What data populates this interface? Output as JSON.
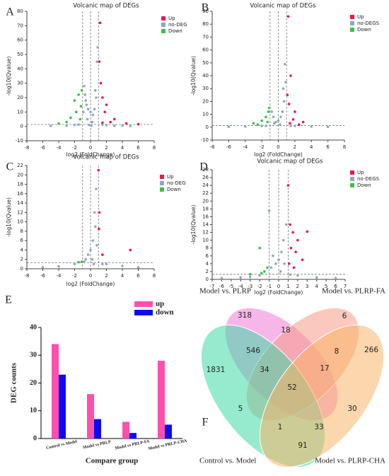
{
  "chart_data": [
    {
      "type": "scatter",
      "panel": "A",
      "title": "Volcanic map of DEGs",
      "x_label": "log2 (FoldChange)",
      "y_label": "-log10(Qvalue)",
      "xlim": [
        -8,
        8
      ],
      "xticks": [
        -8,
        -6,
        -4,
        -2,
        0,
        2,
        4,
        6,
        8
      ],
      "ylim": [
        -10,
        80
      ],
      "yticks": [
        -10,
        0,
        10,
        20,
        30,
        40,
        50,
        60,
        70,
        80
      ],
      "vlines": [
        -1,
        0,
        1
      ],
      "hline": 1.3,
      "series": [
        {
          "name": "Up",
          "color": "#e8174f",
          "x": [
            1.2,
            1.1,
            1.3,
            1.5,
            2,
            1.8,
            3,
            2.5,
            4.5,
            1.5,
            6
          ],
          "values": [
            72,
            45,
            30,
            20,
            15,
            10,
            5,
            3,
            2,
            2.5,
            1.5
          ]
        },
        {
          "name": "no-DEG",
          "color": "#8fa8bf",
          "x": [
            -0.8,
            -0.7,
            -0.6,
            -0.5,
            -0.3,
            0,
            0.3,
            0.5,
            0.7,
            0.8,
            0.9,
            0.6,
            -0.9,
            -0.4,
            0.2,
            -2,
            -3,
            2,
            3,
            -5,
            5,
            -1.5,
            1.5,
            0.1,
            -0.2,
            4
          ],
          "values": [
            28,
            22,
            18,
            15,
            12,
            10,
            8,
            12,
            20,
            45,
            55,
            25,
            10,
            5,
            3,
            1,
            0.5,
            0.8,
            0.4,
            0.3,
            0.2,
            1.2,
            1.1,
            0.5,
            1,
            0.6
          ]
        },
        {
          "name": "Down",
          "color": "#3cbf4a",
          "x": [
            -1.5,
            -2,
            -1.2,
            -1.8,
            -2.5,
            -1.1,
            -3,
            -4,
            -1.3
          ],
          "values": [
            22,
            18,
            14,
            10,
            6,
            25,
            3,
            2,
            5
          ]
        }
      ]
    },
    {
      "type": "scatter",
      "panel": "B",
      "title": "Volcanic map of DEGs",
      "x_label": "log2 (FoldChange)",
      "y_label": "-log10(Qvalue)",
      "xlim": [
        -8,
        8
      ],
      "xticks": [
        -8,
        -6,
        -4,
        -2,
        0,
        2,
        4,
        6,
        8
      ],
      "ylim": [
        -10,
        90
      ],
      "yticks": [
        -10,
        0,
        10,
        20,
        30,
        40,
        50,
        60,
        70,
        80,
        90
      ],
      "vlines": [
        -1,
        0,
        1
      ],
      "hline": 1.3,
      "series": [
        {
          "name": "Up",
          "color": "#e8174f",
          "x": [
            1.2,
            1.5,
            1.1,
            1.3,
            2,
            1.8,
            3,
            1.4,
            2.5
          ],
          "values": [
            86,
            40,
            25,
            18,
            12,
            6,
            4,
            3,
            2
          ]
        },
        {
          "name": "no-DEGS",
          "color": "#8fa8bf",
          "x": [
            0.8,
            0.6,
            0.7,
            0.5,
            0.3,
            0,
            -0.3,
            -0.6,
            -0.8,
            -0.5,
            0.9,
            -2,
            2,
            -4,
            4,
            -6,
            6,
            0.2,
            -1.5,
            1.5
          ],
          "values": [
            49,
            30,
            20,
            12,
            8,
            5,
            4,
            8,
            12,
            3,
            35,
            1,
            1,
            0.5,
            0.5,
            0.3,
            0.3,
            2,
            1,
            1
          ]
        },
        {
          "name": "Down",
          "color": "#3cbf4a",
          "x": [
            -1.2,
            -1.5,
            -2,
            -1.1,
            -3,
            -1.3,
            -2.5
          ],
          "values": [
            12,
            8,
            5,
            15,
            3,
            4,
            2
          ]
        }
      ]
    },
    {
      "type": "scatter",
      "panel": "C",
      "title": "Volcanic map of DEGs",
      "x_label": "log2 (FoldChange)",
      "y_label": "-log10(Qvalue)",
      "xlim": [
        -8,
        8
      ],
      "xticks": [
        -8,
        -6,
        -4,
        -2,
        0,
        2,
        4,
        6,
        8
      ],
      "ylim": [
        0,
        22
      ],
      "yticks": [
        0,
        2,
        4,
        6,
        8,
        10,
        12,
        14,
        16,
        18,
        20,
        22
      ],
      "vlines": [
        -1,
        0,
        1
      ],
      "hline": 1.3,
      "series": [
        {
          "name": "Up",
          "color": "#e8174f",
          "x": [
            1,
            1.1,
            1.05,
            5,
            1.5
          ],
          "values": [
            21,
            12,
            8.5,
            4,
            3
          ]
        },
        {
          "name": "no-DEG",
          "color": "#8fa8bf",
          "x": [
            0.7,
            0.5,
            0.6,
            0.3,
            0,
            -0.3,
            -0.6,
            0.8,
            0.2,
            -2,
            2,
            -4,
            4,
            -6,
            6,
            -0.8,
            1.5,
            0.4
          ],
          "values": [
            17,
            12,
            9,
            6,
            4,
            3,
            2,
            5,
            2,
            1,
            1,
            0.5,
            0.6,
            0.3,
            0.3,
            1.5,
            1,
            1
          ]
        },
        {
          "name": "Down",
          "color": "#3cbf4a",
          "x": [
            -1.1,
            -1.5
          ],
          "values": [
            1.5,
            1.4
          ]
        }
      ]
    },
    {
      "type": "scatter",
      "panel": "D",
      "title": "Volcanic map of DEGs",
      "x_label": "log2 (FoldChange)",
      "y_label": "-log10(Qvalue)",
      "xlim": [
        -7,
        7
      ],
      "xticks": [
        -7,
        -6,
        -5,
        -4,
        -3,
        -2,
        -1,
        0,
        1,
        2,
        3,
        4,
        5,
        6,
        7
      ],
      "ylim": [
        0,
        28
      ],
      "yticks": [
        0,
        2,
        4,
        6,
        8,
        10,
        12,
        14,
        16,
        18,
        20,
        22,
        24,
        26,
        28
      ],
      "vlines": [
        -1,
        0,
        1
      ],
      "hline": 1.3,
      "series": [
        {
          "name": "Up",
          "color": "#e8174f",
          "x": [
            1,
            1.2,
            1.5,
            2,
            1.3,
            1.8,
            2.5,
            1.1,
            3,
            1.6
          ],
          "values": [
            24,
            14,
            12,
            10,
            8,
            7,
            5,
            4,
            12.2,
            3
          ]
        },
        {
          "name": "no-DEGS",
          "color": "#8fa8bf",
          "x": [
            -1,
            0.8,
            0.5,
            0.3,
            0,
            -0.3,
            -0.6,
            -0.8,
            0.6,
            -2,
            2,
            -4,
            4,
            -6,
            6,
            -3,
            0.2,
            1.2
          ],
          "values": [
            17.5,
            14,
            10,
            7,
            5,
            4,
            6,
            3,
            4,
            1,
            1,
            0.5,
            0.5,
            0.3,
            0.3,
            0.6,
            2,
            1.2
          ]
        },
        {
          "name": "Down",
          "color": "#3cbf4a",
          "x": [
            -2,
            -1.2,
            -1.5,
            -1.8,
            -3
          ],
          "values": [
            8,
            3,
            2,
            1.6,
            1.3
          ]
        }
      ]
    },
    {
      "type": "bar",
      "panel": "E",
      "x_label": "Compare group",
      "y_label": "DEG counts",
      "categories": [
        "Control vs Model",
        "Model vs PRLP",
        "Model vs PRLP-FA",
        "Model vs PRLP-CHA"
      ],
      "ylim": [
        0,
        40
      ],
      "yticks": [
        0,
        10,
        20,
        30,
        40
      ],
      "series": [
        {
          "name": "up",
          "color": "#ff4fae",
          "values": [
            34,
            16,
            6,
            28
          ]
        },
        {
          "name": "down",
          "color": "#0a0af5",
          "values": [
            23,
            7,
            2,
            5
          ]
        }
      ]
    },
    {
      "type": "venn",
      "panel": "F",
      "sets": [
        {
          "name": "Model vs. PLRP",
          "color": "#f07ad6"
        },
        {
          "name": "Model vs. PLRP-FA",
          "color": "#f79a86"
        },
        {
          "name": "Control vs. Model",
          "color": "#3fd9a6"
        },
        {
          "name": "Model vs. PLRP-CHA",
          "color": "#f9b467"
        }
      ],
      "values": [
        318,
        6,
        1831,
        546,
        18,
        8,
        266,
        34,
        17,
        52,
        5,
        30,
        1,
        33,
        91
      ]
    }
  ]
}
